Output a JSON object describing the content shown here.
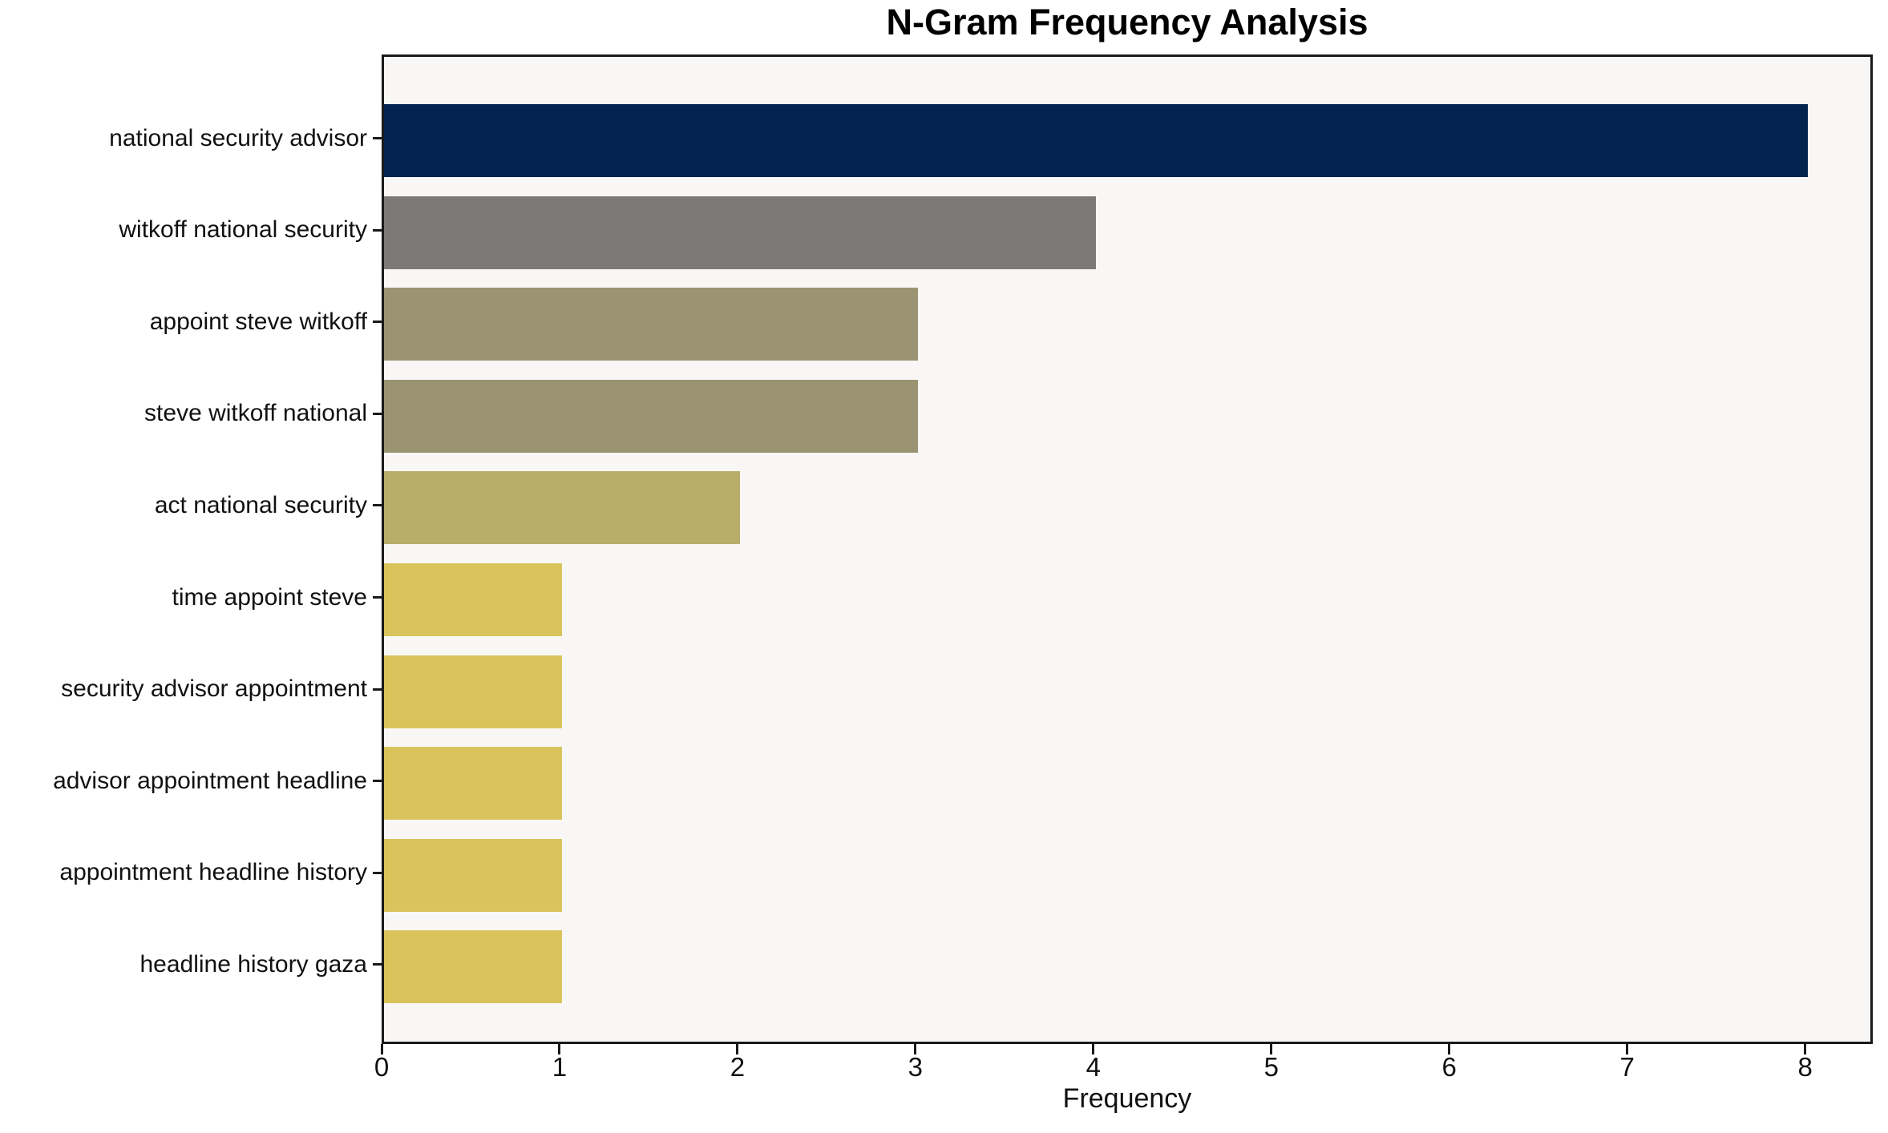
{
  "title": "N-Gram Frequency Analysis",
  "colors": {
    "figure_background": "#ffffff",
    "plot_background": "#f8f7f5",
    "spine": "#1a1a1a",
    "text": "#111111"
  },
  "chart_data": {
    "type": "bar",
    "orientation": "horizontal",
    "title": "N-Gram Frequency Analysis",
    "xlabel": "Frequency",
    "ylabel": "",
    "categories": [
      "national security advisor",
      "witkoff national security",
      "appoint steve witkoff",
      "steve witkoff national",
      "act national security",
      "time appoint steve",
      "security advisor appointment",
      "advisor appointment headline",
      "appointment headline history",
      "headline history gaza"
    ],
    "values": [
      8,
      4,
      3,
      3,
      2,
      1,
      1,
      1,
      1,
      1
    ],
    "bar_colors": [
      "#02234e",
      "#7b7a76",
      "#9a9472",
      "#9a9472",
      "#b9ad69",
      "#d9c45c",
      "#d9c45c",
      "#d9c45c",
      "#d9c45c",
      "#d9c45c"
    ],
    "xticks": [
      0,
      1,
      2,
      3,
      4,
      5,
      6,
      7,
      8
    ],
    "xlim": [
      0,
      8.38
    ],
    "grid": false,
    "legend": null
  }
}
